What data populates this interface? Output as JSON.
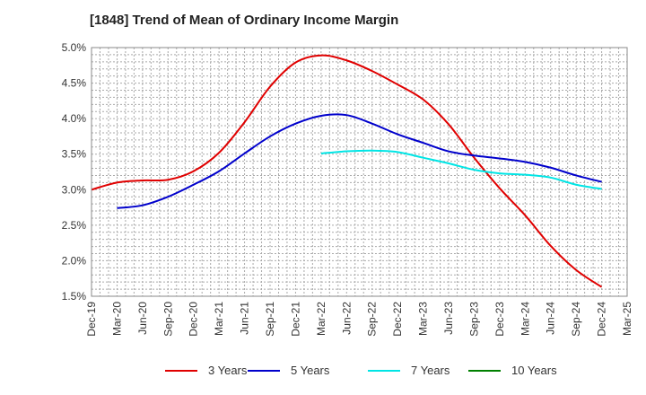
{
  "chart_data": {
    "type": "line",
    "title": "[1848]  Trend of Mean of Ordinary Income Margin",
    "xlabel": "",
    "ylabel": "",
    "x_categories": [
      "Dec-19",
      "Mar-20",
      "Jun-20",
      "Sep-20",
      "Dec-20",
      "Mar-21",
      "Jun-21",
      "Sep-21",
      "Dec-21",
      "Mar-22",
      "Jun-22",
      "Sep-22",
      "Dec-22",
      "Mar-23",
      "Jun-23",
      "Sep-23",
      "Dec-23",
      "Mar-24",
      "Jun-24",
      "Sep-24",
      "Dec-24",
      "Mar-25"
    ],
    "y_ticks": [
      "5.0%",
      "4.5%",
      "4.0%",
      "3.5%",
      "3.0%",
      "2.5%",
      "2.0%",
      "1.5%"
    ],
    "ylim": [
      1.5,
      5.0
    ],
    "grid": true,
    "legend_position": "bottom",
    "series": [
      {
        "name": "3 Years",
        "color": "#e00000",
        "values": [
          3.0,
          3.1,
          3.13,
          3.14,
          3.26,
          3.52,
          3.95,
          4.45,
          4.79,
          4.89,
          4.82,
          4.67,
          4.48,
          4.27,
          3.92,
          3.45,
          3.02,
          2.64,
          2.21,
          1.87,
          1.63,
          null
        ]
      },
      {
        "name": "5 Years",
        "color": "#0000cc",
        "values": [
          null,
          2.74,
          2.78,
          2.9,
          3.07,
          3.26,
          3.51,
          3.75,
          3.93,
          4.04,
          4.05,
          3.93,
          3.78,
          3.66,
          3.54,
          3.48,
          3.44,
          3.39,
          3.31,
          3.2,
          3.11,
          null
        ]
      },
      {
        "name": "7 Years",
        "color": "#00e5e5",
        "values": [
          null,
          null,
          null,
          null,
          null,
          null,
          null,
          null,
          null,
          3.51,
          3.54,
          3.55,
          3.53,
          3.45,
          3.37,
          3.28,
          3.23,
          3.21,
          3.17,
          3.07,
          3.01,
          null
        ]
      },
      {
        "name": "10 Years",
        "color": "#008000",
        "values": [
          null,
          null,
          null,
          null,
          null,
          null,
          null,
          null,
          null,
          null,
          null,
          null,
          null,
          null,
          null,
          null,
          null,
          null,
          null,
          null,
          null,
          null
        ]
      }
    ]
  }
}
